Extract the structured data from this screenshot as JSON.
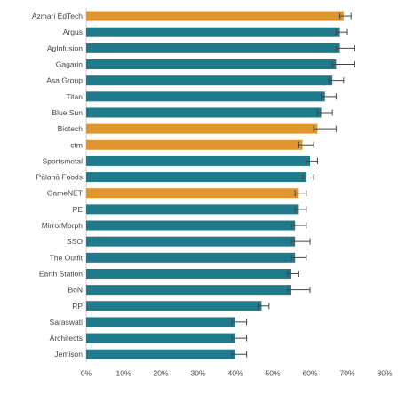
{
  "chart_data": {
    "type": "bar",
    "orientation": "horizontal",
    "title": "",
    "xlabel": "",
    "ylabel": "",
    "xlim": [
      0,
      0.8
    ],
    "x_ticks": [
      "0%",
      "10%",
      "20%",
      "30%",
      "40%",
      "50%",
      "60%",
      "70%",
      "80%"
    ],
    "grid": false,
    "legend": "none",
    "colors": {
      "highlight": "#E0952E",
      "default": "#1F7A8C",
      "error_bar": "#444444"
    },
    "categories": [
      "Azmari EdTech",
      "Argus",
      "AgInfusion",
      "Gagarin",
      "Asa Group",
      "Titan",
      "Blue Sun",
      "Biotech",
      "ctm",
      "Sportsmetal",
      "Pālanā Foods",
      "GameNET",
      "PE",
      "MirrorMorph",
      "SSO",
      "The Outfit",
      "Earth Station",
      "BoN",
      "RP",
      "Saraswati",
      "Architects",
      "Jemison"
    ],
    "values": [
      0.69,
      0.68,
      0.68,
      0.67,
      0.66,
      0.64,
      0.63,
      0.62,
      0.58,
      0.6,
      0.59,
      0.57,
      0.57,
      0.56,
      0.56,
      0.56,
      0.55,
      0.55,
      0.47,
      0.4,
      0.4,
      0.4
    ],
    "error_low": [
      0.68,
      0.67,
      0.67,
      0.66,
      0.65,
      0.63,
      0.62,
      0.61,
      0.57,
      0.59,
      0.58,
      0.56,
      0.56,
      0.55,
      0.55,
      0.55,
      0.54,
      0.54,
      0.46,
      0.39,
      0.39,
      0.39
    ],
    "error_high": [
      0.71,
      0.7,
      0.72,
      0.72,
      0.69,
      0.67,
      0.66,
      0.67,
      0.61,
      0.62,
      0.61,
      0.59,
      0.59,
      0.59,
      0.6,
      0.59,
      0.57,
      0.6,
      0.49,
      0.43,
      0.43,
      0.43
    ],
    "highlighted": [
      "Azmari EdTech",
      "Biotech",
      "ctm",
      "GameNET"
    ]
  }
}
